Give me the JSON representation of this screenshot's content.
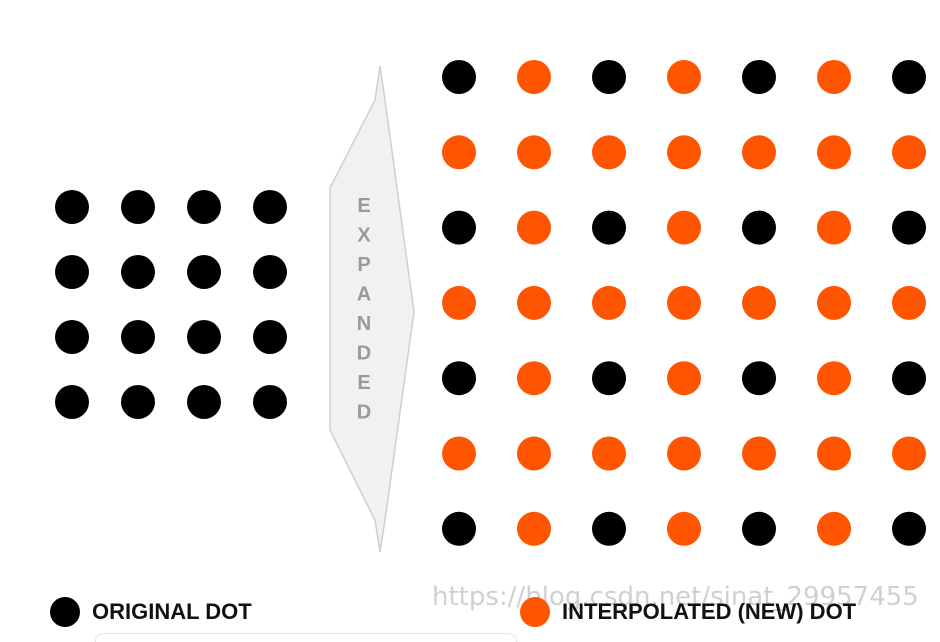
{
  "arrow": {
    "letters": [
      "E",
      "X",
      "P",
      "A",
      "N",
      "D",
      "E",
      "D"
    ]
  },
  "original_grid": {
    "rows": 4,
    "cols": 4,
    "color": "#000000"
  },
  "expanded_grid": {
    "rows": 7,
    "cols": 7,
    "original_color": "#000000",
    "interpolated_color": "#ff5500",
    "note": "original dots at even row and even column indices"
  },
  "legend": {
    "original_label": "ORIGINAL DOT",
    "interpolated_label": "INTERPOLATED (NEW) DOT",
    "original_color": "#000000",
    "interpolated_color": "#ff5500"
  },
  "watermark": "https://blog.csdn.net/sinat_29957455"
}
